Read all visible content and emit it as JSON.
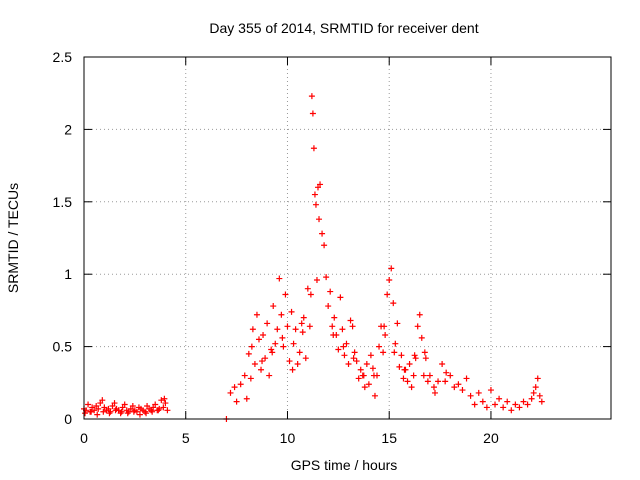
{
  "chart_data": {
    "type": "scatter",
    "title": "Day 355 of 2014, SRMTID for receiver dent",
    "xlabel": "GPS time / hours",
    "ylabel": "SRMTID / TECUs",
    "xlim": [
      0,
      25.9
    ],
    "ylim": [
      0,
      2.5
    ],
    "xticks": [
      0,
      5,
      10,
      15,
      20
    ],
    "xtick_labels": [
      "0",
      "5",
      "10",
      "15",
      "20"
    ],
    "yticks": [
      0,
      0.5,
      1,
      1.5,
      2,
      2.5
    ],
    "ytick_labels": [
      "0",
      "0.5",
      "1",
      "1.5",
      "2",
      "2.5"
    ],
    "grid": true,
    "series": [
      {
        "name": "SRMTID",
        "color": "#ff0000",
        "marker": "plus",
        "x": [
          0.0,
          0.1,
          0.2,
          0.3,
          0.4,
          0.5,
          0.6,
          0.7,
          0.8,
          0.9,
          1.0,
          1.1,
          1.2,
          1.3,
          1.4,
          1.5,
          1.6,
          1.7,
          1.8,
          1.9,
          2.0,
          2.1,
          2.2,
          2.3,
          2.4,
          2.5,
          2.6,
          2.7,
          2.8,
          2.9,
          3.0,
          3.1,
          3.2,
          3.3,
          3.4,
          3.5,
          3.6,
          3.7,
          3.8,
          3.9,
          4.0,
          4.1,
          0.05,
          0.35,
          0.65,
          0.95,
          1.25,
          1.55,
          1.85,
          2.15,
          2.45,
          2.75,
          3.05,
          3.35,
          3.65,
          3.95,
          7.0,
          7.2,
          7.4,
          7.5,
          7.7,
          7.9,
          8.0,
          8.1,
          8.2,
          8.3,
          8.4,
          8.5,
          8.6,
          8.7,
          8.8,
          8.9,
          9.0,
          9.1,
          9.2,
          9.3,
          9.4,
          9.5,
          9.6,
          9.7,
          9.8,
          9.9,
          10.0,
          10.1,
          10.2,
          10.3,
          10.4,
          10.5,
          10.6,
          10.7,
          10.8,
          10.9,
          11.0,
          11.1,
          11.15,
          11.2,
          11.25,
          11.3,
          11.35,
          11.4,
          11.5,
          11.6,
          11.7,
          11.8,
          11.9,
          12.0,
          12.1,
          12.2,
          12.3,
          12.4,
          12.5,
          12.6,
          12.7,
          12.8,
          12.9,
          13.0,
          13.1,
          13.2,
          13.3,
          13.4,
          13.5,
          13.6,
          13.7,
          13.8,
          13.9,
          14.0,
          14.1,
          14.2,
          14.3,
          14.4,
          14.5,
          14.6,
          14.7,
          14.8,
          14.9,
          15.0,
          15.1,
          15.2,
          15.3,
          15.4,
          15.5,
          15.6,
          15.7,
          15.8,
          15.9,
          16.0,
          16.1,
          16.2,
          16.3,
          16.4,
          16.5,
          16.6,
          16.7,
          16.8,
          16.9,
          17.0,
          17.2,
          17.4,
          17.6,
          17.8,
          18.0,
          18.2,
          18.4,
          18.6,
          18.8,
          19.0,
          19.2,
          19.4,
          19.6,
          19.8,
          20.0,
          20.2,
          20.4,
          20.6,
          20.8,
          21.0,
          21.2,
          21.4,
          21.6,
          21.8,
          22.0,
          22.1,
          22.2,
          22.3,
          22.4,
          22.5,
          8.25,
          8.75,
          9.25,
          9.75,
          10.25,
          10.75,
          11.45,
          11.55,
          12.25,
          12.75,
          13.25,
          13.75,
          14.25,
          14.75,
          15.25,
          15.75,
          16.25,
          16.75,
          17.25,
          17.75
        ],
        "y": [
          0.07,
          0.06,
          0.1,
          0.05,
          0.08,
          0.06,
          0.09,
          0.07,
          0.11,
          0.13,
          0.08,
          0.06,
          0.07,
          0.05,
          0.09,
          0.11,
          0.07,
          0.06,
          0.04,
          0.08,
          0.1,
          0.06,
          0.05,
          0.07,
          0.09,
          0.06,
          0.05,
          0.08,
          0.07,
          0.06,
          0.05,
          0.09,
          0.07,
          0.06,
          0.08,
          0.1,
          0.06,
          0.07,
          0.13,
          0.08,
          0.11,
          0.06,
          0.04,
          0.05,
          0.03,
          0.05,
          0.04,
          0.06,
          0.05,
          0.04,
          0.05,
          0.03,
          0.04,
          0.05,
          0.06,
          0.14,
          0.0,
          0.18,
          0.22,
          0.12,
          0.24,
          0.3,
          0.14,
          0.45,
          0.28,
          0.62,
          0.38,
          0.72,
          0.55,
          0.34,
          0.58,
          0.42,
          0.66,
          0.3,
          0.48,
          0.78,
          0.52,
          0.62,
          0.97,
          0.72,
          0.5,
          0.86,
          0.64,
          0.4,
          0.74,
          0.52,
          0.62,
          0.38,
          0.46,
          0.66,
          0.7,
          0.42,
          0.9,
          0.64,
          0.86,
          2.23,
          2.11,
          1.87,
          1.55,
          1.48,
          1.6,
          1.62,
          1.28,
          1.2,
          0.98,
          0.78,
          0.88,
          0.64,
          0.7,
          0.58,
          0.48,
          0.84,
          0.62,
          0.44,
          0.52,
          0.38,
          0.68,
          0.64,
          0.46,
          0.4,
          0.28,
          0.34,
          0.3,
          0.22,
          0.38,
          0.24,
          0.44,
          0.35,
          0.16,
          0.3,
          0.5,
          0.64,
          0.46,
          0.58,
          0.86,
          0.96,
          1.04,
          0.8,
          0.52,
          0.66,
          0.36,
          0.44,
          0.28,
          0.34,
          0.26,
          0.38,
          0.22,
          0.3,
          0.42,
          0.64,
          0.72,
          0.56,
          0.3,
          0.42,
          0.26,
          0.3,
          0.22,
          0.26,
          0.38,
          0.32,
          0.3,
          0.22,
          0.24,
          0.2,
          0.28,
          0.16,
          0.1,
          0.18,
          0.12,
          0.08,
          0.2,
          0.1,
          0.14,
          0.08,
          0.12,
          0.06,
          0.1,
          0.08,
          0.12,
          0.1,
          0.14,
          0.18,
          0.22,
          0.28,
          0.16,
          0.12,
          0.5,
          0.4,
          0.46,
          0.56,
          0.34,
          0.6,
          0.96,
          1.38,
          0.58,
          0.5,
          0.42,
          0.3,
          0.3,
          0.64,
          0.46,
          0.34,
          0.44,
          0.46,
          0.18,
          0.26
        ]
      }
    ]
  }
}
